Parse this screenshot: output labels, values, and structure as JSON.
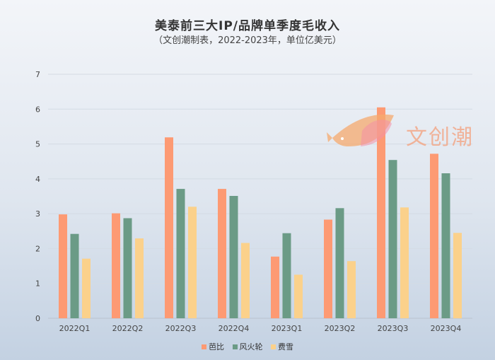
{
  "chart_data": {
    "type": "bar",
    "title": "美泰前三大IP/品牌单季度毛收入",
    "subtitle": "（文创潮制表，2022-2023年，单位亿美元）",
    "categories": [
      "2022Q1",
      "2022Q2",
      "2022Q3",
      "2022Q4",
      "2023Q1",
      "2023Q2",
      "2023Q3",
      "2023Q4"
    ],
    "series": [
      {
        "name": "芭比",
        "color": "#fd9a73",
        "values": [
          2.98,
          3.01,
          5.19,
          3.71,
          1.77,
          2.83,
          6.05,
          4.72
        ]
      },
      {
        "name": "风火轮",
        "color": "#6b9b86",
        "values": [
          2.42,
          2.87,
          3.71,
          3.51,
          2.44,
          3.16,
          4.54,
          4.16
        ]
      },
      {
        "name": "费雪",
        "color": "#fbd18b",
        "values": [
          1.71,
          2.29,
          3.2,
          2.16,
          1.25,
          1.64,
          3.18,
          2.45
        ]
      }
    ],
    "ylim": [
      0,
      7
    ],
    "yticks": [
      "0",
      "1",
      "2",
      "3",
      "4",
      "5",
      "6",
      "7"
    ],
    "grid": true,
    "legend_position": "bottom-center",
    "xlabel": "",
    "ylabel": ""
  },
  "watermark": {
    "text": "文创潮"
  }
}
